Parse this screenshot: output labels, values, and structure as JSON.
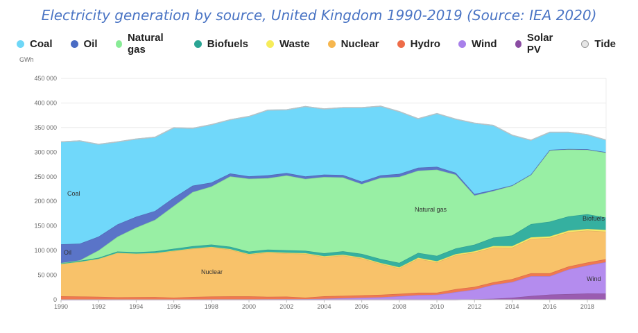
{
  "title": "Electricity generation by source, United Kingdom 1990-2019 (Source: IEA 2020)",
  "chart_data": {
    "type": "area",
    "stacked": true,
    "title": "Electricity generation by source, United Kingdom 1990-2019 (Source: IEA 2020)",
    "ylabel": "GWh",
    "xlabel": "",
    "ylim": [
      0,
      450000
    ],
    "xlim": [
      1990,
      2019
    ],
    "grid": true,
    "legend_position": "top",
    "x": [
      1990,
      1991,
      1992,
      1993,
      1994,
      1995,
      1996,
      1997,
      1998,
      1999,
      2000,
      2001,
      2002,
      2003,
      2004,
      2005,
      2006,
      2007,
      2008,
      2009,
      2010,
      2011,
      2012,
      2013,
      2014,
      2015,
      2016,
      2017,
      2018,
      2019
    ],
    "x_ticks": [
      1990,
      1992,
      1994,
      1996,
      1998,
      2000,
      2002,
      2004,
      2006,
      2008,
      2010,
      2012,
      2014,
      2016,
      2018
    ],
    "y_ticks": [
      0,
      50000,
      100000,
      150000,
      200000,
      250000,
      300000,
      350000,
      400000,
      450000
    ],
    "y_tick_labels": [
      "0",
      "50 000",
      "100 000",
      "150 000",
      "200 000",
      "250 000",
      "300 000",
      "350 000",
      "400 000",
      "450 000"
    ],
    "series": [
      {
        "name": "Solar PV",
        "color": "#9a5cb0",
        "values": [
          0,
          0,
          0,
          0,
          0,
          0,
          0,
          0,
          0,
          0,
          0,
          0,
          0,
          0,
          0,
          0,
          0,
          0,
          0,
          0,
          0,
          0,
          1000,
          2000,
          4000,
          7500,
          10400,
          11500,
          12700,
          12500
        ]
      },
      {
        "name": "Wind",
        "color": "#b48cee",
        "values": [
          0,
          0,
          0,
          200,
          300,
          400,
          500,
          600,
          900,
          900,
          900,
          1000,
          1300,
          1300,
          2000,
          3000,
          4000,
          5000,
          7000,
          9300,
          10200,
          15500,
          19600,
          28400,
          32000,
          40300,
          37300,
          50000,
          57000,
          64000
        ]
      },
      {
        "name": "Hydro",
        "color": "#f07850",
        "values": [
          7000,
          6500,
          6000,
          4800,
          5000,
          5000,
          3700,
          5000,
          5600,
          6000,
          6000,
          5000,
          5000,
          3000,
          5000,
          5000,
          5000,
          5000,
          5000,
          5000,
          4000,
          6000,
          5500,
          5000,
          6000,
          6000,
          6000,
          6000,
          6000,
          6000
        ]
      },
      {
        "name": "Nuclear",
        "color": "#f8c26a",
        "values": [
          65700,
          70500,
          77000,
          90000,
          88000,
          89000,
          94800,
          98000,
          100000,
          95000,
          85000,
          90000,
          88000,
          89000,
          80000,
          82000,
          75000,
          63000,
          52000,
          69000,
          62000,
          69000,
          70000,
          71000,
          64000,
          70000,
          72000,
          70000,
          65000,
          56000
        ]
      },
      {
        "name": "Waste",
        "color": "#f8ee6a",
        "values": [
          0,
          0,
          0,
          300,
          400,
          500,
          600,
          700,
          900,
          1000,
          1100,
          1200,
          1300,
          1400,
          1500,
          1600,
          1700,
          1800,
          1900,
          2000,
          2100,
          2200,
          2400,
          2800,
          3000,
          3000,
          3000,
          3000,
          3200,
          3500
        ]
      },
      {
        "name": "Biofuels",
        "color": "#35b0a0",
        "values": [
          2000,
          2100,
          2300,
          2700,
          3000,
          3500,
          4000,
          4500,
          4800,
          4800,
          4900,
          4800,
          5000,
          5000,
          6000,
          7000,
          7500,
          8000,
          9000,
          10000,
          11000,
          11500,
          13500,
          17000,
          21600,
          27000,
          30000,
          29000,
          30000,
          25000
        ]
      },
      {
        "name": "Natural gas",
        "color": "#98efa4",
        "values": [
          0,
          1000,
          15000,
          30000,
          50000,
          64000,
          87000,
          110000,
          118000,
          143000,
          148000,
          145000,
          152000,
          146000,
          155000,
          150000,
          142000,
          165000,
          175000,
          167000,
          175000,
          150000,
          100000,
          95000,
          101000,
          100000,
          145000,
          136000,
          131000,
          132000
        ]
      },
      {
        "name": "Oil",
        "color": "#5a74c8",
        "values": [
          38000,
          34000,
          28000,
          25000,
          22000,
          18000,
          17000,
          13000,
          8000,
          6000,
          5000,
          6000,
          5000,
          5000,
          5000,
          5000,
          5000,
          5000,
          6000,
          6000,
          6000,
          4000,
          3000,
          2000,
          1000,
          1000,
          1000,
          1000,
          1000,
          1000
        ]
      },
      {
        "name": "Coal",
        "color": "#70d8fa",
        "values": [
          208300,
          208900,
          187700,
          168000,
          158000,
          150000,
          142000,
          116600,
          117800,
          109300,
          121800,
          132500,
          128500,
          142100,
          133500,
          137000,
          150300,
          140800,
          126600,
          99700,
          108200,
          109000,
          144000,
          131300,
          102000,
          69600,
          35800,
          34000,
          29700,
          24700
        ]
      },
      {
        "name": "Tide",
        "color": "#d8d8d8",
        "values": [
          0,
          0,
          0,
          0,
          0,
          0,
          0,
          0,
          0,
          0,
          0,
          0,
          0,
          0,
          0,
          0,
          0,
          0,
          0,
          0,
          0,
          0,
          0,
          0,
          0,
          0,
          0,
          0,
          0,
          0
        ]
      }
    ],
    "annotations": [
      "Coal",
      "Oil",
      "Natural gas",
      "Biofuels",
      "Nuclear",
      "Wind"
    ],
    "legend": [
      {
        "name": "Coal",
        "color": "#6fd7f7"
      },
      {
        "name": "Oil",
        "color": "#4a6cc4"
      },
      {
        "name": "Natural gas",
        "color": "#88eb96"
      },
      {
        "name": "Biofuels",
        "color": "#2aa494"
      },
      {
        "name": "Waste",
        "color": "#f6ec5a"
      },
      {
        "name": "Nuclear",
        "color": "#f6b64e"
      },
      {
        "name": "Hydro",
        "color": "#ee6c48"
      },
      {
        "name": "Wind",
        "color": "#a880ea"
      },
      {
        "name": "Solar PV",
        "color": "#8a4ca2"
      },
      {
        "name": "Tide",
        "color": "#e6e6e6"
      }
    ]
  }
}
